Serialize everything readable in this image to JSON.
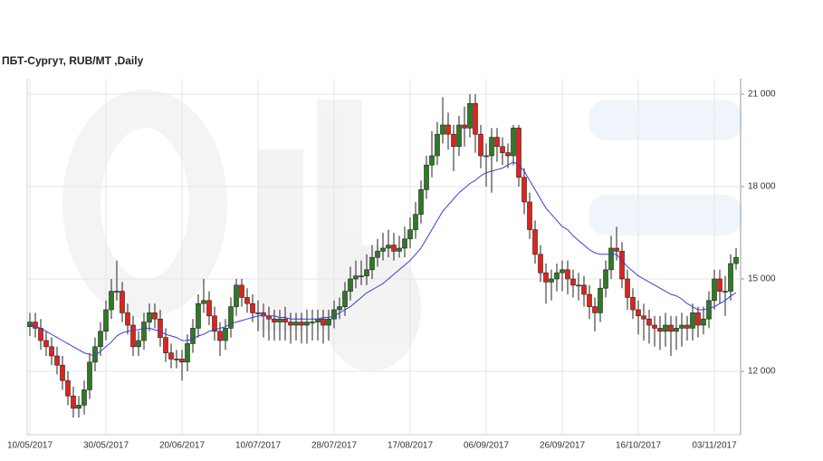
{
  "chart_data": {
    "type": "candlestick",
    "title": "ПБТ-Сургут,  RUB/MT ,Daily",
    "categories": [
      "10/05/2017",
      null,
      null,
      null,
      null,
      null,
      null,
      null,
      null,
      null,
      null,
      null,
      null,
      null,
      "30/05/2017",
      null,
      null,
      null,
      null,
      null,
      null,
      null,
      null,
      null,
      null,
      null,
      null,
      null,
      "20/06/2017",
      null,
      null,
      null,
      null,
      null,
      null,
      null,
      null,
      null,
      null,
      null,
      null,
      null,
      "10/07/2017",
      null,
      null,
      null,
      null,
      null,
      null,
      null,
      null,
      null,
      null,
      null,
      null,
      null,
      "28/07/2017",
      null,
      null,
      null,
      null,
      null,
      null,
      null,
      null,
      null,
      null,
      null,
      null,
      null,
      "17/08/2017",
      null,
      null,
      null,
      null,
      null,
      null,
      null,
      null,
      null,
      null,
      null,
      null,
      null,
      "06/09/2017",
      null,
      null,
      null,
      null,
      null,
      null,
      null,
      null,
      null,
      null,
      null,
      null,
      null,
      "26/09/2017",
      null,
      null,
      null,
      null,
      null,
      null,
      null,
      null,
      null,
      null,
      null,
      null,
      null,
      "16/10/2017",
      null,
      null,
      null,
      null,
      null,
      null,
      null,
      null,
      null,
      null,
      null,
      null,
      null,
      "03/11/2017",
      null,
      null,
      null,
      null
    ],
    "open": [
      13450,
      13600,
      13400,
      13000,
      12800,
      12500,
      12200,
      11700,
      11200,
      10800,
      10900,
      11400,
      12300,
      12800,
      13300,
      14000,
      14600,
      14600,
      13900,
      13500,
      12800,
      13000,
      13600,
      13900,
      13700,
      13100,
      12600,
      12400,
      12400,
      12300,
      12900,
      13400,
      14200,
      14300,
      13800,
      13300,
      13000,
      13400,
      14100,
      14800,
      14400,
      14200,
      13900,
      13900,
      13800,
      13700,
      13600,
      13700,
      13600,
      13500,
      13600,
      13500,
      13600,
      13600,
      13700,
      13500,
      13700,
      14000,
      14100,
      14600,
      15000,
      15100,
      15100,
      15300,
      15700,
      15900,
      16000,
      16100,
      15900,
      16000,
      16300,
      16600,
      17100,
      17900,
      18700,
      19000,
      19700,
      20000,
      19700,
      19300,
      20000,
      19900,
      20700,
      19700,
      19000,
      19000,
      19600,
      19300,
      19100,
      19000,
      19900,
      18300,
      17500,
      16600,
      15800,
      15200,
      14900,
      15000,
      15200,
      15300,
      15000,
      14800,
      14800,
      14500,
      14100,
      13900,
      14700,
      15300,
      16000,
      15900,
      15000,
      14400,
      14000,
      13800,
      13700,
      13500,
      13400,
      13300,
      13500,
      13300,
      13400,
      13500,
      13400,
      13900,
      13500,
      13700,
      14300,
      15000,
      14600,
      14600,
      15500
    ],
    "high": [
      13900,
      13900,
      13700,
      13300,
      13100,
      12800,
      12500,
      12000,
      11500,
      11200,
      11700,
      12600,
      13100,
      13600,
      14300,
      15000,
      15600,
      14900,
      14200,
      13800,
      13300,
      13900,
      14200,
      14200,
      14000,
      13400,
      12900,
      12700,
      12700,
      13200,
      13700,
      14500,
      15000,
      14600,
      14100,
      13600,
      13700,
      14400,
      15000,
      15000,
      14700,
      14500,
      14300,
      14200,
      14100,
      14000,
      14000,
      14100,
      13900,
      13900,
      13900,
      14000,
      14000,
      14000,
      14000,
      14000,
      14300,
      14400,
      14900,
      15400,
      15600,
      15600,
      15800,
      16100,
      16300,
      16500,
      16600,
      16500,
      16400,
      16700,
      17000,
      17500,
      18200,
      19000,
      19800,
      20100,
      20900,
      20400,
      20000,
      20300,
      20600,
      21000,
      21000,
      20000,
      19400,
      19900,
      19900,
      19600,
      19400,
      20000,
      20000,
      18600,
      17800,
      16900,
      16100,
      15500,
      15300,
      15500,
      15600,
      15600,
      15300,
      15200,
      15100,
      14800,
      14400,
      15000,
      15600,
      16400,
      16700,
      16200,
      15300,
      14700,
      14300,
      14200,
      14000,
      13800,
      13800,
      13900,
      13800,
      13800,
      13900,
      13800,
      14200,
      14100,
      14100,
      14600,
      15300,
      15300,
      15100,
      15800,
      16000
    ],
    "low": [
      13150,
      13100,
      12700,
      12500,
      12200,
      11900,
      11400,
      10900,
      10500,
      10500,
      10600,
      11100,
      12000,
      12500,
      13000,
      13700,
      14300,
      13600,
      13200,
      12500,
      12500,
      12700,
      13300,
      13400,
      12800,
      12300,
      12100,
      12100,
      11700,
      12000,
      12600,
      13100,
      13900,
      13500,
      13000,
      12500,
      12700,
      13100,
      13800,
      14100,
      13900,
      13600,
      13300,
      13100,
      13000,
      13000,
      13000,
      13000,
      12900,
      13000,
      12900,
      12900,
      13000,
      13000,
      12900,
      13000,
      13400,
      13700,
      13800,
      14300,
      14700,
      14800,
      14800,
      15000,
      15400,
      15600,
      15700,
      15600,
      15700,
      15700,
      16000,
      16300,
      16800,
      17600,
      18300,
      18700,
      19400,
      19200,
      18500,
      19000,
      19300,
      19600,
      19100,
      18600,
      18000,
      17800,
      18800,
      18700,
      18600,
      18700,
      18000,
      17100,
      16300,
      15500,
      14900,
      14200,
      14300,
      14600,
      14600,
      14500,
      14400,
      14300,
      14100,
      13700,
      13300,
      13600,
      14400,
      15000,
      15600,
      14700,
      14000,
      13700,
      13200,
      13000,
      12900,
      12800,
      12700,
      12800,
      12500,
      12700,
      12800,
      13000,
      13000,
      13100,
      13200,
      13400,
      14000,
      14200,
      13800,
      14300,
      15300
    ],
    "close": [
      13600,
      13400,
      13000,
      12800,
      12500,
      12200,
      11700,
      11200,
      10800,
      10900,
      11400,
      12300,
      12800,
      13300,
      14000,
      14600,
      14600,
      13900,
      13500,
      12800,
      13000,
      13600,
      13900,
      13700,
      13100,
      12600,
      12400,
      12400,
      12300,
      12900,
      13400,
      14200,
      14300,
      13800,
      13300,
      13000,
      13400,
      14100,
      14800,
      14400,
      14200,
      13900,
      13900,
      13800,
      13700,
      13600,
      13700,
      13600,
      13500,
      13600,
      13500,
      13600,
      13600,
      13700,
      13500,
      13700,
      14000,
      14100,
      14600,
      15000,
      15100,
      15100,
      15300,
      15700,
      15900,
      16000,
      16100,
      15900,
      16000,
      16300,
      16600,
      17100,
      17900,
      18700,
      19000,
      19700,
      20000,
      19700,
      19300,
      20000,
      19900,
      20700,
      19700,
      19000,
      19000,
      19600,
      19300,
      19100,
      19000,
      19900,
      18300,
      17500,
      16600,
      15800,
      15200,
      14900,
      15000,
      15200,
      15300,
      15000,
      14800,
      14800,
      14500,
      14100,
      13900,
      14700,
      15300,
      16000,
      15900,
      15000,
      14400,
      14000,
      13800,
      13700,
      13500,
      13400,
      13300,
      13500,
      13300,
      13400,
      13500,
      13400,
      13900,
      13500,
      13700,
      14300,
      15000,
      14600,
      14600,
      15500,
      15700
    ],
    "up_color": "#2f7a24",
    "down_color": "#e0231b",
    "moving_average": {
      "color": "#3b3bd6",
      "values": [
        13500,
        13450,
        13400,
        13300,
        13200,
        13100,
        13000,
        12900,
        12800,
        12700,
        12600,
        12550,
        12500,
        12650,
        12800,
        12950,
        13150,
        13250,
        13300,
        13350,
        13350,
        13400,
        13400,
        13350,
        13300,
        13200,
        13150,
        13100,
        13000,
        13000,
        13050,
        13150,
        13200,
        13300,
        13350,
        13400,
        13450,
        13550,
        13600,
        13650,
        13700,
        13750,
        13800,
        13800,
        13800,
        13800,
        13750,
        13750,
        13700,
        13700,
        13700,
        13700,
        13700,
        13700,
        13750,
        13750,
        13800,
        13900,
        14000,
        14100,
        14250,
        14400,
        14550,
        14650,
        14750,
        14850,
        15000,
        15150,
        15300,
        15450,
        15600,
        15800,
        16000,
        16300,
        16600,
        16900,
        17200,
        17400,
        17600,
        17800,
        17950,
        18100,
        18200,
        18350,
        18450,
        18500,
        18550,
        18600,
        18700,
        18800,
        18700,
        18500,
        18200,
        17900,
        17600,
        17300,
        17100,
        16900,
        16700,
        16600,
        16400,
        16250,
        16100,
        15950,
        15850,
        15800,
        15800,
        15800,
        15800,
        15600,
        15400,
        15250,
        15100,
        15000,
        14900,
        14800,
        14700,
        14600,
        14500,
        14450,
        14350,
        14200,
        14100,
        14000,
        14000,
        14050,
        14100,
        14200,
        14300,
        14450,
        14550
      ]
    },
    "ylim": [
      10000,
      21500
    ],
    "yticks": [
      {
        "value": 12000,
        "label": "12 000"
      },
      {
        "value": 15000,
        "label": "15 000"
      },
      {
        "value": 18000,
        "label": "18 000"
      },
      {
        "value": 21000,
        "label": "21 000"
      }
    ],
    "grid": true
  }
}
